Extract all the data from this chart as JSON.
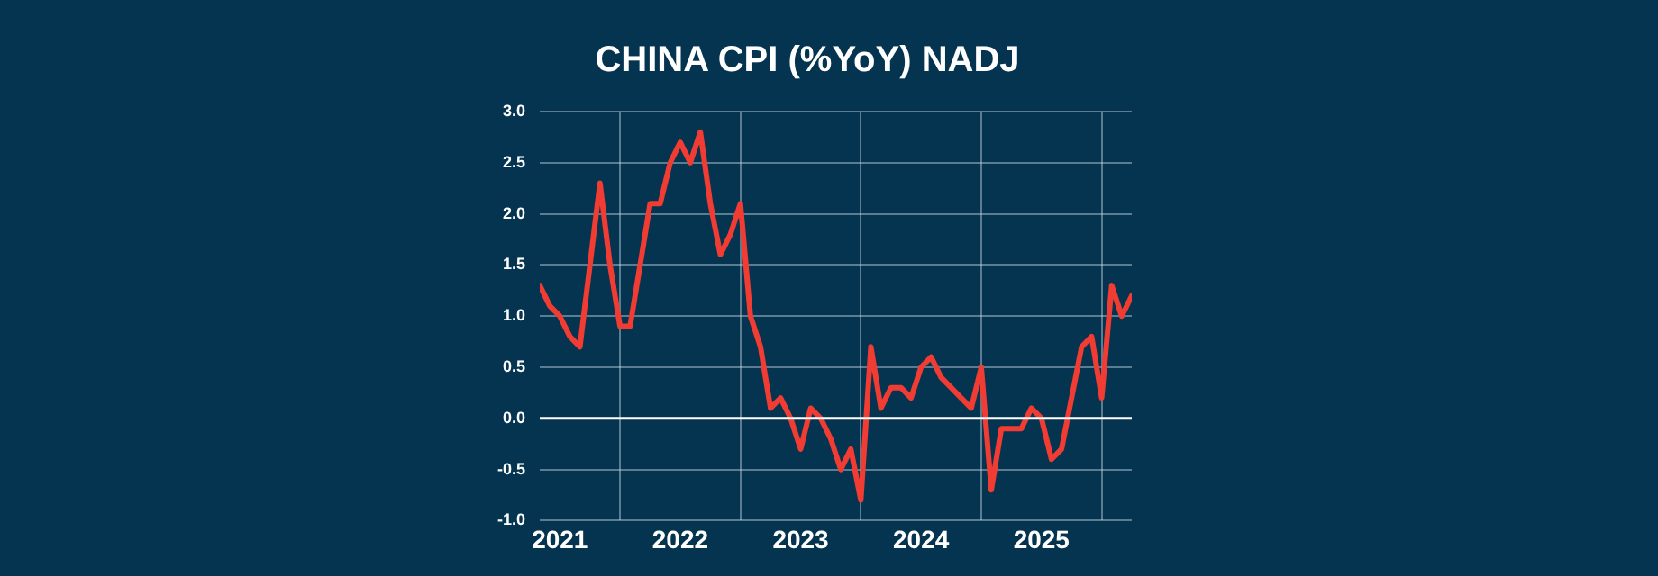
{
  "chart_data": {
    "type": "line",
    "title": "CHINA CPI (%YoY) NADJ",
    "x": [
      "2021-05",
      "2021-06",
      "2021-07",
      "2021-08",
      "2021-09",
      "2021-10",
      "2021-11",
      "2021-12",
      "2022-01",
      "2022-02",
      "2022-03",
      "2022-04",
      "2022-05",
      "2022-06",
      "2022-07",
      "2022-08",
      "2022-09",
      "2022-10",
      "2022-11",
      "2022-12",
      "2023-01",
      "2023-02",
      "2023-03",
      "2023-04",
      "2023-05",
      "2023-06",
      "2023-07",
      "2023-08",
      "2023-09",
      "2023-10",
      "2023-11",
      "2023-12",
      "2024-01",
      "2024-02",
      "2024-03",
      "2024-04",
      "2024-05",
      "2024-06",
      "2024-07",
      "2024-08",
      "2024-09",
      "2024-10",
      "2024-11",
      "2024-12",
      "2025-01",
      "2025-02",
      "2025-03",
      "2025-04",
      "2025-05",
      "2025-06",
      "2025-07",
      "2025-08",
      "2025-09",
      "2025-10",
      "2025-11",
      "2025-12",
      "2026-01",
      "2026-02",
      "2026-03",
      "2026-04"
    ],
    "series": [
      {
        "color": "#f03c32",
        "values": [
          1.3,
          1.1,
          1.0,
          0.8,
          0.7,
          1.5,
          2.3,
          1.5,
          0.9,
          0.9,
          1.5,
          2.1,
          2.1,
          2.5,
          2.7,
          2.5,
          2.8,
          2.1,
          1.6,
          1.8,
          2.1,
          1.0,
          0.7,
          0.1,
          0.2,
          0.0,
          -0.3,
          0.1,
          0.0,
          -0.2,
          -0.5,
          -0.3,
          -0.8,
          0.7,
          0.1,
          0.3,
          0.3,
          0.2,
          0.5,
          0.6,
          0.4,
          0.3,
          0.2,
          0.1,
          0.5,
          -0.7,
          -0.1,
          -0.1,
          -0.1,
          0.1,
          0.0,
          -0.4,
          -0.3,
          0.2,
          0.7,
          0.8,
          0.2,
          1.3,
          1.0,
          1.2
        ]
      }
    ],
    "xlim": [
      "2021-05",
      "2026-04"
    ],
    "xticks": [
      {
        "value": "2021-07",
        "label": "2021"
      },
      {
        "value": "2022-01",
        "label": null
      },
      {
        "value": "2022-07",
        "label": "2022"
      },
      {
        "value": "2023-01",
        "label": null
      },
      {
        "value": "2023-07",
        "label": "2023"
      },
      {
        "value": "2024-01",
        "label": null
      },
      {
        "value": "2024-07",
        "label": "2024"
      },
      {
        "value": "2025-01",
        "label": null
      },
      {
        "value": "2025-07",
        "label": "2025"
      },
      {
        "value": "2026-01",
        "label": null
      }
    ],
    "ylim": [
      -1,
      3
    ],
    "yticks": [
      {
        "value": -1,
        "label": "-1.0"
      },
      {
        "value": -0.5,
        "label": "-0.5"
      },
      {
        "value": 0,
        "label": "0.0"
      },
      {
        "value": 0.5,
        "label": "0.5"
      },
      {
        "value": 1,
        "label": "1.0"
      },
      {
        "value": 1.5,
        "label": "1.5"
      },
      {
        "value": 2,
        "label": "2.0"
      },
      {
        "value": 2.5,
        "label": "2.5"
      },
      {
        "value": 3,
        "label": "3.0"
      }
    ],
    "ref_lines": [
      {
        "axis": "y",
        "value": 0,
        "color": "#ffffff"
      }
    ],
    "grid": true,
    "legend": false,
    "marker": "none",
    "line_style": "solid"
  }
}
